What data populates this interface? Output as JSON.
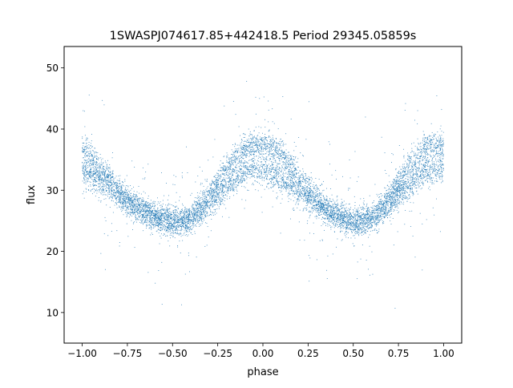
{
  "chart_data": {
    "type": "scatter",
    "title": "1SWASPJ074617.85+442418.5 Period 29345.05859s",
    "xlabel": "phase",
    "ylabel": "flux",
    "xlim": [
      -1.1,
      1.1
    ],
    "ylim": [
      5.0,
      53.5
    ],
    "xticks": [
      -1.0,
      -0.75,
      -0.5,
      -0.25,
      0.0,
      0.25,
      0.5,
      0.75,
      1.0
    ],
    "xtick_labels": [
      "−1.00",
      "−0.75",
      "−0.50",
      "−0.25",
      "0.00",
      "0.25",
      "0.50",
      "0.75",
      "1.00"
    ],
    "yticks": [
      10,
      20,
      30,
      40,
      50
    ],
    "ytick_labels": [
      "10",
      "20",
      "30",
      "40",
      "50"
    ],
    "grid": false,
    "marker_color": "#1f77b4",
    "series": [
      {
        "description": "folded light curve, two overlapping bands",
        "x": [
          -1.0,
          -0.9,
          -0.8,
          -0.7,
          -0.6,
          -0.5,
          -0.4,
          -0.3,
          -0.2,
          -0.1,
          0.0,
          0.1,
          0.2,
          0.3,
          0.4,
          0.5,
          0.6,
          0.7,
          0.8,
          0.9,
          1.0
        ],
        "y_upper_band": [
          37.0,
          33.5,
          30.0,
          27.5,
          25.8,
          25.0,
          25.5,
          29.0,
          33.5,
          37.0,
          37.5,
          36.0,
          32.0,
          28.5,
          26.0,
          25.0,
          25.5,
          29.0,
          33.5,
          37.0,
          37.5
        ],
        "y_lower_band": [
          33.0,
          31.5,
          29.0,
          27.0,
          25.5,
          24.5,
          25.0,
          27.5,
          30.5,
          33.0,
          33.5,
          32.0,
          29.5,
          27.5,
          25.8,
          24.5,
          25.0,
          27.5,
          30.5,
          33.0,
          33.5
        ]
      }
    ]
  }
}
